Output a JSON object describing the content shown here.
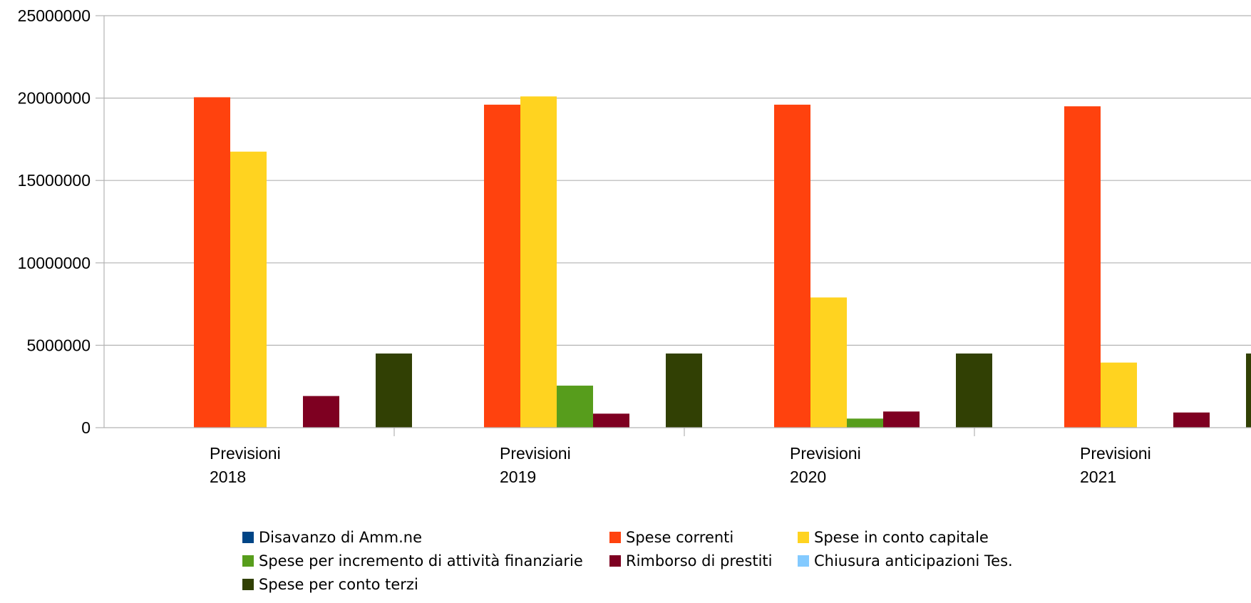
{
  "chart_data": {
    "type": "bar",
    "title": "",
    "xlabel": "",
    "ylabel": "",
    "ylim": [
      0,
      25000000
    ],
    "yticks": [
      "0",
      "5000000",
      "10000000",
      "15000000",
      "20000000",
      "25000000"
    ],
    "categories": [
      [
        "Previsioni",
        "2018"
      ],
      [
        "Previsioni",
        "2019"
      ],
      [
        "Previsioni",
        "2020"
      ],
      [
        "Previsioni",
        "2021"
      ]
    ],
    "grid": true,
    "legend_position": "bottom",
    "series": [
      {
        "name": "Disavanzo di Amm.ne",
        "color": "#004586",
        "values": [
          0,
          0,
          0,
          0
        ]
      },
      {
        "name": "Spese correnti",
        "color": "#ff420e",
        "values": [
          20050000,
          19600000,
          19600000,
          19500000
        ]
      },
      {
        "name": "Spese in conto capitale",
        "color": "#ffd320",
        "values": [
          16750000,
          20100000,
          7900000,
          3950000
        ]
      },
      {
        "name": "Spese per incremento di attività finanziarie",
        "color": "#579d1c",
        "values": [
          0,
          2550000,
          550000,
          0
        ]
      },
      {
        "name": "Rimborso di prestiti",
        "color": "#7e0021",
        "values": [
          1920000,
          850000,
          980000,
          920000
        ]
      },
      {
        "name": "Chiusura anticipazioni Tes.",
        "color": "#83caff",
        "values": [
          0,
          0,
          0,
          0
        ]
      },
      {
        "name": "Spese per conto terzi",
        "color": "#314004",
        "values": [
          4500000,
          4500000,
          4500000,
          4500000
        ]
      }
    ]
  }
}
